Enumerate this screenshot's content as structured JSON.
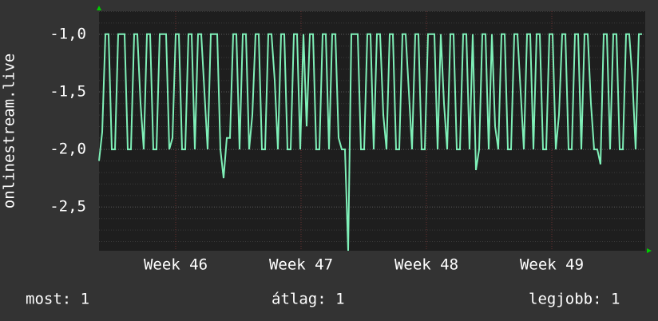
{
  "chart_data": {
    "type": "line",
    "y_label": "onlinestream.live",
    "x": [
      0,
      1,
      2,
      3,
      4,
      5,
      6,
      7,
      8,
      9,
      10,
      11,
      12,
      13,
      14,
      15,
      16,
      17,
      18,
      19,
      20,
      21,
      22,
      23,
      24,
      25,
      26,
      27,
      28,
      29,
      30,
      31,
      32,
      33,
      34,
      35,
      36,
      37,
      38,
      39,
      40,
      41,
      42,
      43,
      44,
      45,
      46,
      47,
      48,
      49,
      50,
      51,
      52,
      53,
      54,
      55,
      56,
      57,
      58,
      59,
      60,
      61,
      62,
      63,
      64,
      65,
      66,
      67,
      68,
      69,
      70,
      71,
      72,
      73,
      74,
      75,
      76,
      77,
      78,
      79,
      80,
      81,
      82,
      83,
      84,
      85,
      86,
      87,
      88,
      89,
      90,
      91,
      92,
      93,
      94,
      95,
      96,
      97,
      98,
      99,
      100,
      101,
      102,
      103,
      104,
      105,
      106,
      107,
      108,
      109,
      110,
      111,
      112,
      113,
      114,
      115,
      116,
      117,
      118,
      119,
      120,
      121,
      122,
      123,
      124,
      125,
      126,
      127,
      128,
      129,
      130,
      131,
      132,
      133,
      134,
      135,
      136,
      137,
      138,
      139,
      140,
      141,
      142,
      143,
      144,
      145,
      146,
      147,
      148,
      149,
      150,
      151,
      152,
      153,
      154,
      155,
      156,
      157,
      158,
      159,
      160,
      161,
      162,
      163,
      164,
      165,
      166,
      167,
      168,
      169,
      170
    ],
    "series": [
      {
        "color": "#7ff0b8",
        "values": [
          -2.1,
          -1.85,
          -1,
          -1,
          -2,
          -2,
          -1,
          -1,
          -1,
          -2,
          -2,
          -1,
          -1,
          -1.6,
          -2,
          -1,
          -1,
          -2,
          -2,
          -1,
          -1,
          -1,
          -2,
          -1.9,
          -1,
          -1,
          -2,
          -2,
          -1,
          -1,
          -2,
          -1,
          -1,
          -1.5,
          -2,
          -1,
          -1,
          -1,
          -2,
          -2.25,
          -1.9,
          -1.9,
          -1,
          -1,
          -2,
          -1,
          -1,
          -2,
          -1.7,
          -1,
          -1,
          -2,
          -2,
          -1,
          -1,
          -1.4,
          -2,
          -1,
          -1,
          -2,
          -2,
          -1,
          -1,
          -2,
          -1,
          -1.8,
          -1,
          -1,
          -2,
          -2,
          -1,
          -1,
          -2,
          -1,
          -1,
          -1.9,
          -2,
          -2,
          -2.88,
          -1,
          -1,
          -1,
          -2,
          -2,
          -1,
          -1,
          -2,
          -1,
          -1,
          -1.7,
          -2,
          -1,
          -1,
          -2,
          -2,
          -1,
          -1,
          -1.5,
          -2,
          -1,
          -1,
          -2,
          -2,
          -1,
          -1,
          -1,
          -2,
          -1,
          -1.6,
          -2,
          -1,
          -1,
          -2,
          -2,
          -1,
          -1,
          -2,
          -1,
          -2.18,
          -2,
          -1,
          -1,
          -2,
          -1,
          -1.8,
          -2,
          -1,
          -1,
          -2,
          -2,
          -1,
          -1,
          -1.5,
          -2,
          -1,
          -1,
          -2,
          -1,
          -1,
          -2,
          -2,
          -1,
          -1,
          -2,
          -1.7,
          -1,
          -1,
          -2,
          -2,
          -1,
          -1,
          -2,
          -1,
          -1,
          -1.6,
          -2,
          -2,
          -2.13,
          -1,
          -1,
          -2,
          -1,
          -1,
          -2,
          -2,
          -1,
          -1,
          -1.4,
          -2,
          -1,
          -1
        ]
      }
    ],
    "xlim": [
      0,
      171
    ],
    "xticks": [
      {
        "value": 24,
        "label": "Week 46"
      },
      {
        "value": 63.25,
        "label": "Week 47"
      },
      {
        "value": 102.5,
        "label": "Week 48"
      },
      {
        "value": 141.75,
        "label": "Week 49"
      }
    ],
    "ylim": [
      -2.88,
      -0.8
    ],
    "yticks": [
      {
        "value": -1.0,
        "label": "-1,0"
      },
      {
        "value": -1.5,
        "label": "-1,5"
      },
      {
        "value": -2.0,
        "label": "-2,0"
      },
      {
        "value": -2.5,
        "label": "-2,5"
      }
    ],
    "grid": true,
    "legend_items": [
      "most: 1",
      "átlag: 1",
      "legjobb: 1"
    ]
  }
}
